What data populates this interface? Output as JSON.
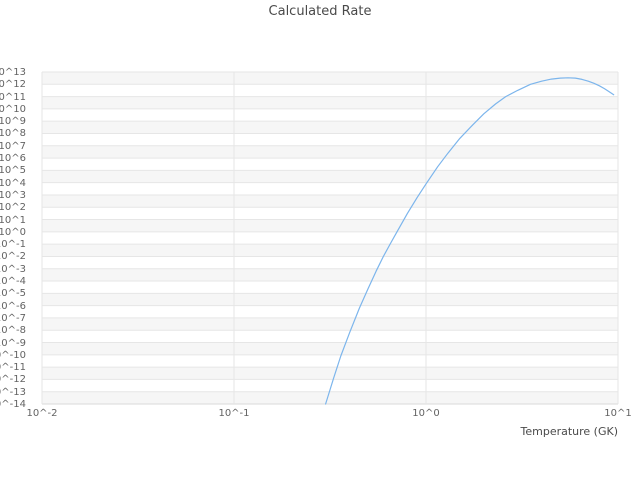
{
  "chart_data": {
    "type": "line",
    "title": "Calculated Rate",
    "xlabel": "Temperature (GK)",
    "ylabel": "",
    "x_scale": "log",
    "y_scale": "log",
    "xlim": [
      0.01,
      10
    ],
    "ylim_exp": [
      -14,
      13
    ],
    "grid": true,
    "legend": "none",
    "colors": {
      "line": "#7cb5ec",
      "grid": "#e6e6e6",
      "band": "#f6f6f6",
      "axis": "#d9d9d9",
      "tick_text": "#636363",
      "title_text": "#4a4a4a"
    },
    "x_ticks": [
      {
        "exp": -2,
        "label": "10^-2"
      },
      {
        "exp": -1,
        "label": "10^-1"
      },
      {
        "exp": 0,
        "label": "10^0"
      },
      {
        "exp": 1,
        "label": "10^1"
      }
    ],
    "y_ticks": [
      {
        "exp": 13,
        "label": "10^13"
      },
      {
        "exp": 12,
        "label": "10^12"
      },
      {
        "exp": 11,
        "label": "10^11"
      },
      {
        "exp": 10,
        "label": "10^10"
      },
      {
        "exp": 9,
        "label": "10^9"
      },
      {
        "exp": 8,
        "label": "10^8"
      },
      {
        "exp": 7,
        "label": "10^7"
      },
      {
        "exp": 6,
        "label": "10^6"
      },
      {
        "exp": 5,
        "label": "10^5"
      },
      {
        "exp": 4,
        "label": "10^4"
      },
      {
        "exp": 3,
        "label": "10^3"
      },
      {
        "exp": 2,
        "label": "10^2"
      },
      {
        "exp": 1,
        "label": "10^1"
      },
      {
        "exp": 0,
        "label": "10^0"
      },
      {
        "exp": -1,
        "label": "10^-1"
      },
      {
        "exp": -2,
        "label": "10^-2"
      },
      {
        "exp": -3,
        "label": "10^-3"
      },
      {
        "exp": -4,
        "label": "10^-4"
      },
      {
        "exp": -5,
        "label": "10^-5"
      },
      {
        "exp": -6,
        "label": "10^-6"
      },
      {
        "exp": -7,
        "label": "10^-7"
      },
      {
        "exp": -8,
        "label": "10^-8"
      },
      {
        "exp": -9,
        "label": "10^-9"
      },
      {
        "exp": -10,
        "label": "10^-10"
      },
      {
        "exp": -11,
        "label": "10^-11"
      },
      {
        "exp": -12,
        "label": "10^-12"
      },
      {
        "exp": -13,
        "label": "10^-13"
      },
      {
        "exp": -14,
        "label": "10^-14"
      }
    ],
    "series": [
      {
        "points_comment": "pairs of [temperature_GK, log10(rate)] read from the curve",
        "points": [
          [
            0.3,
            -14.0
          ],
          [
            0.33,
            -11.9
          ],
          [
            0.36,
            -10.1
          ],
          [
            0.4,
            -8.2
          ],
          [
            0.45,
            -6.2
          ],
          [
            0.5,
            -4.6
          ],
          [
            0.55,
            -3.2
          ],
          [
            0.6,
            -2.0
          ],
          [
            0.65,
            -1.0
          ],
          [
            0.7,
            -0.1
          ],
          [
            0.8,
            1.5
          ],
          [
            0.9,
            2.8
          ],
          [
            1.0,
            3.9
          ],
          [
            1.15,
            5.3
          ],
          [
            1.3,
            6.4
          ],
          [
            1.5,
            7.6
          ],
          [
            1.75,
            8.7
          ],
          [
            2.0,
            9.6
          ],
          [
            2.3,
            10.4
          ],
          [
            2.6,
            11.0
          ],
          [
            3.0,
            11.5
          ],
          [
            3.5,
            12.0
          ],
          [
            4.0,
            12.25
          ],
          [
            4.5,
            12.42
          ],
          [
            5.0,
            12.5
          ],
          [
            5.5,
            12.53
          ],
          [
            6.0,
            12.5
          ],
          [
            6.5,
            12.4
          ],
          [
            7.0,
            12.25
          ],
          [
            7.5,
            12.08
          ],
          [
            8.0,
            11.88
          ],
          [
            8.5,
            11.65
          ],
          [
            9.0,
            11.4
          ],
          [
            9.5,
            11.15
          ]
        ]
      }
    ]
  }
}
